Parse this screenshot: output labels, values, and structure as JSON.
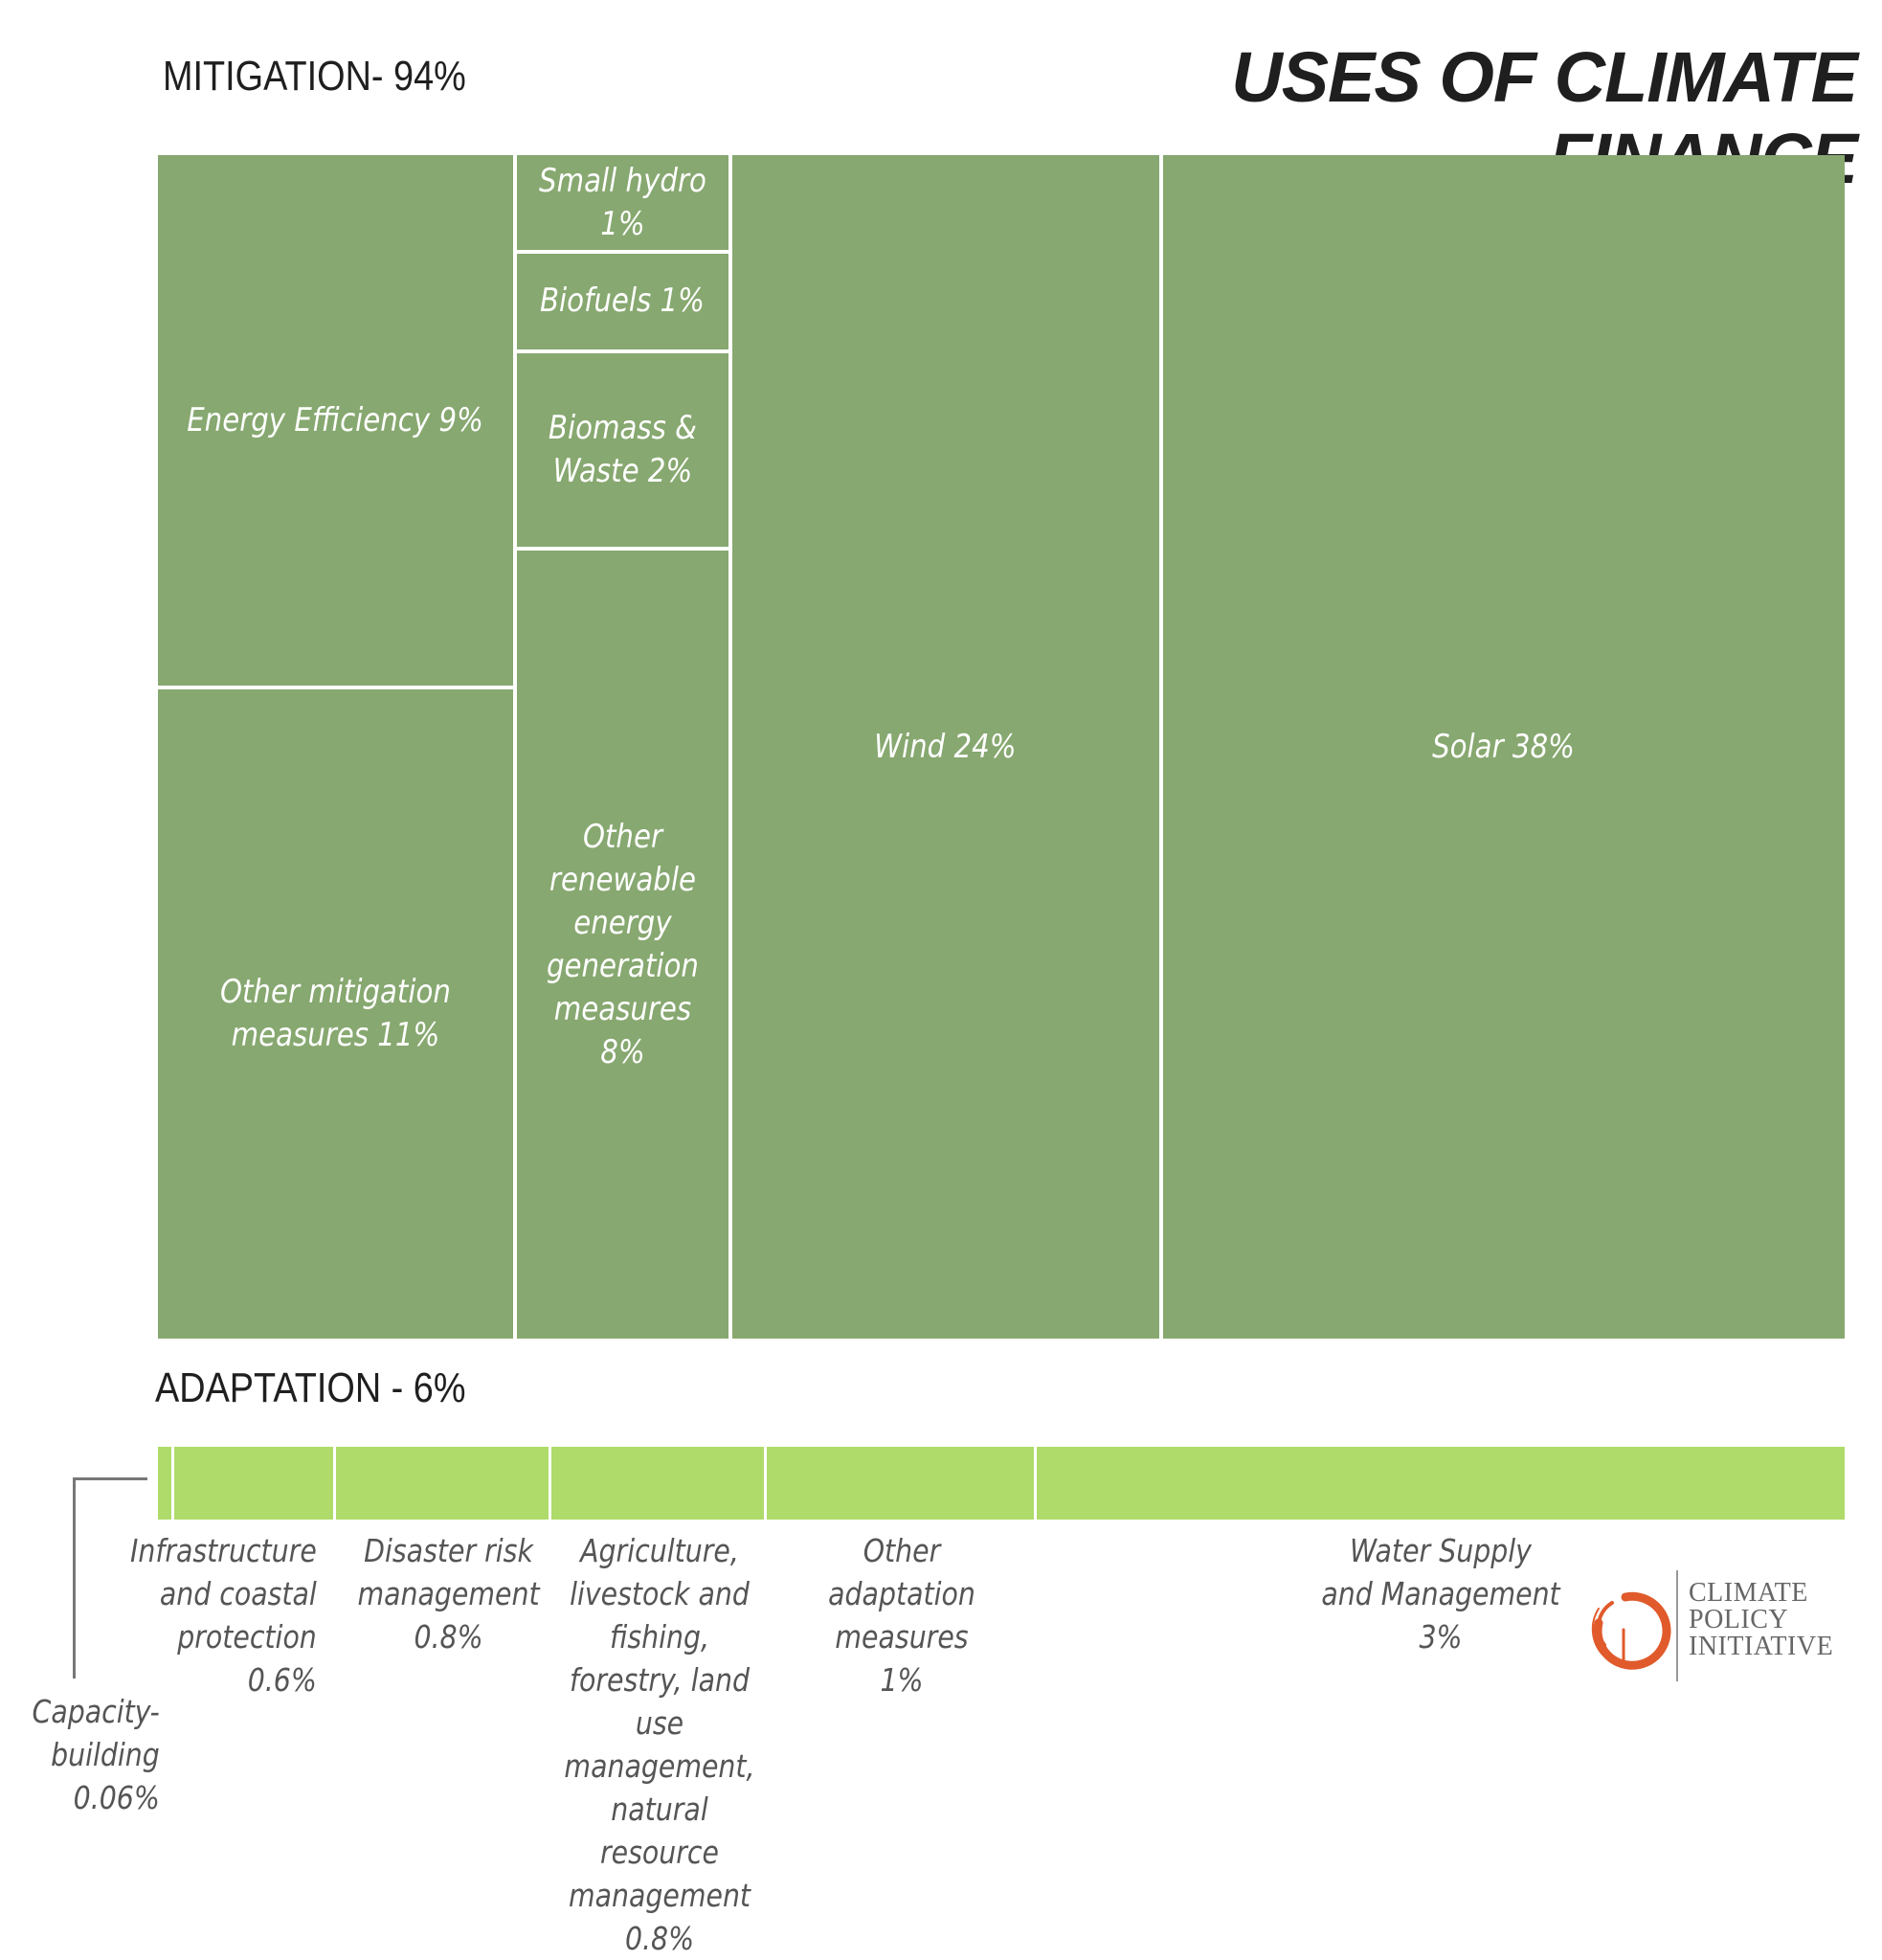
{
  "title": "USES OF CLIMATE FINANCE",
  "mitigation_label": "MITIGATION- 94%",
  "adaptation_label": "ADAPTATION - 6%",
  "colors": {
    "mitigation": "#87a870",
    "adaptation": "#aedb6a",
    "logo": "#e05a2b"
  },
  "logo": {
    "line1": "CLIMATE",
    "line2": "POLICY",
    "line3": "INITIATIVE"
  },
  "chart_data": {
    "type": "treemap",
    "title": "USES OF CLIMATE FINANCE",
    "groups": [
      {
        "name": "MITIGATION- 94%",
        "value": 94,
        "items": [
          {
            "key": "energy_efficiency",
            "label": "Energy Efficiency 9%",
            "value": 9
          },
          {
            "key": "other_mitigation",
            "label": "Other mitigation measures 11%",
            "value": 11
          },
          {
            "key": "small_hydro",
            "label": "Small hydro 1%",
            "value": 1
          },
          {
            "key": "biofuels",
            "label": "Biofuels 1%",
            "value": 1
          },
          {
            "key": "biomass",
            "label": "Biomass & Waste 2%",
            "value": 2
          },
          {
            "key": "other_renewable",
            "label": "Other renewable energy generation measures 8%",
            "value": 8
          },
          {
            "key": "wind",
            "label": "Wind 24%",
            "value": 24
          },
          {
            "key": "solar",
            "label": "Solar 38%",
            "value": 38
          }
        ]
      },
      {
        "name": "ADAPTATION - 6%",
        "value": 6,
        "items": [
          {
            "key": "capacity_building",
            "label": "Capacity-building 0.06%",
            "value": 0.06
          },
          {
            "key": "infrastructure",
            "label": "Infrastructure and coastal protection 0.6%",
            "value": 0.6
          },
          {
            "key": "disaster",
            "label": "Disaster risk management 0.8%",
            "value": 0.8
          },
          {
            "key": "agriculture",
            "label": "Agriculture, livestock and fishing, forestry, land use management, natural resource management 0.8%",
            "value": 0.8
          },
          {
            "key": "other_adaptation",
            "label": "Other adaptation measures 1%",
            "value": 1
          },
          {
            "key": "water",
            "label": "Water Supply and Management 3%",
            "value": 3
          }
        ]
      }
    ]
  }
}
